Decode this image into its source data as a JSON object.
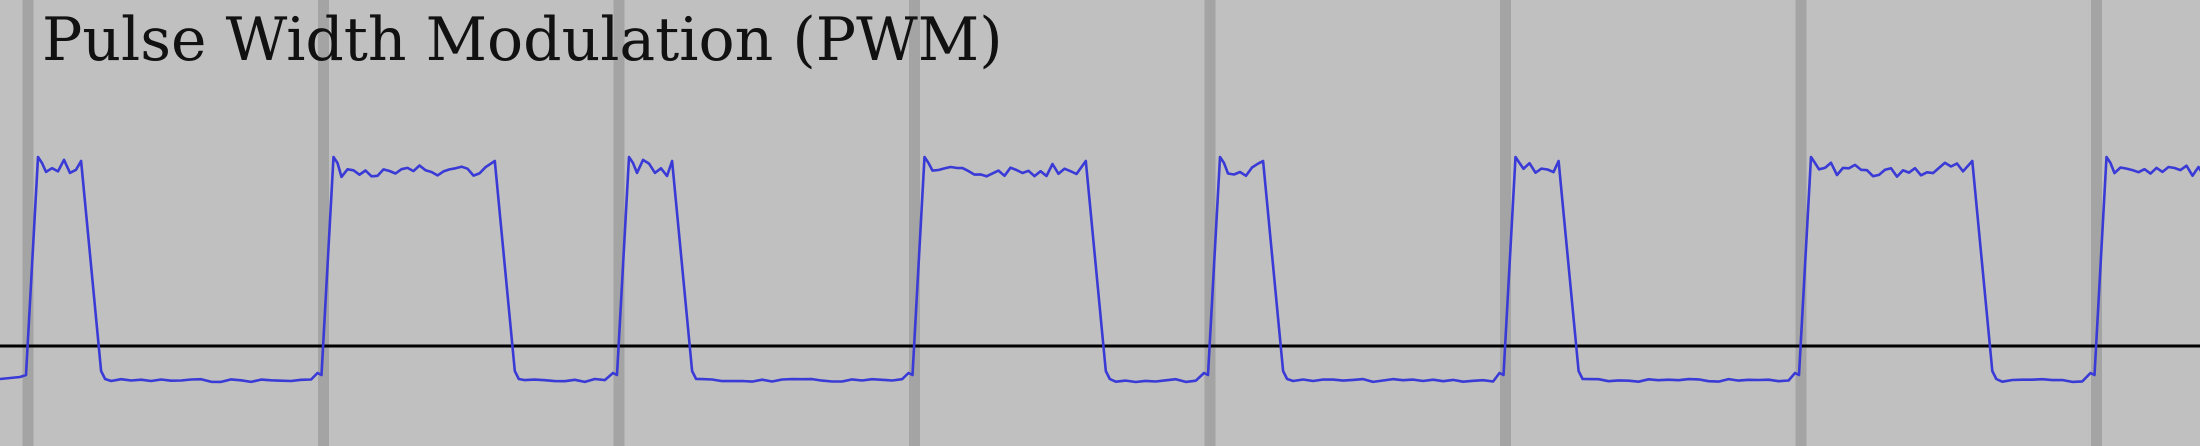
{
  "title": "Pulse Width Modulation (PWM)",
  "colors": {
    "background": "#c0c0c0",
    "grid": "#a4a4a4",
    "waveform": "#3a3ad6",
    "baseline": "#000000"
  },
  "chart_data": {
    "type": "line",
    "title": "Pulse Width Modulation (PWM)",
    "xlabel": "",
    "ylabel": "",
    "period_count": 7.4,
    "duty_cycles": [
      0.2,
      0.6,
      0.2,
      0.6,
      0.2,
      0.2,
      0.6,
      0.6
    ],
    "levels": {
      "high": 1.0,
      "low": -0.2
    },
    "grid": "vertical lines, one per PWM period"
  }
}
